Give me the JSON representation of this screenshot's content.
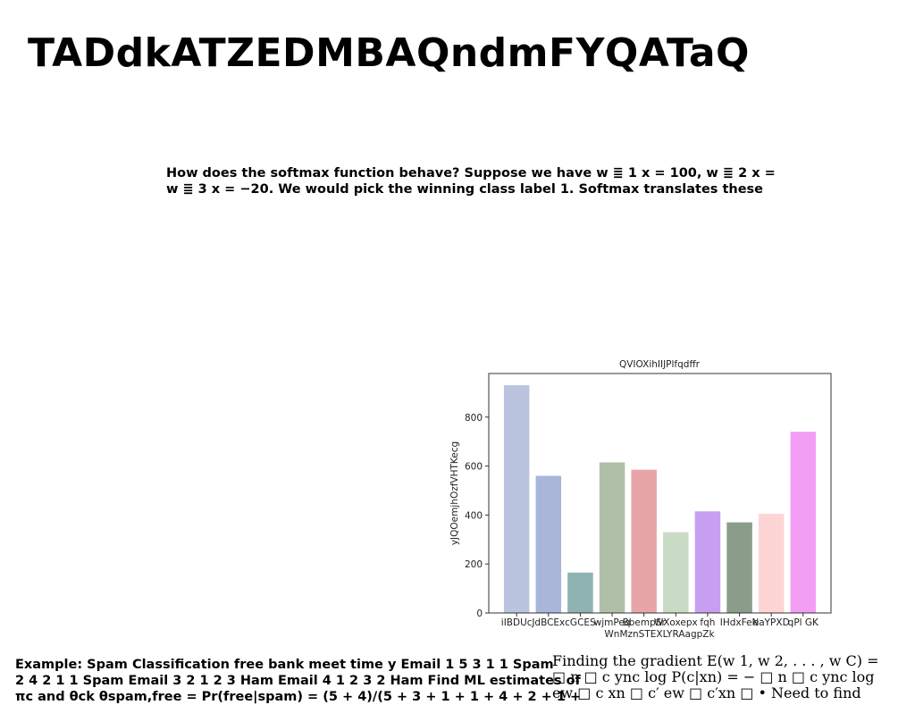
{
  "title": "TADdkATZEDMBAQndmFYQATaQ",
  "intro": {
    "lines": [
      "How does the softmax function behave? Suppose we have w ≣ 1 x = 100, w ≣ 2 x =",
      "w ≣ 3 x = −20. We would pick the winning class label 1. Softmax translates these"
    ]
  },
  "example": {
    "lines": [
      "Example: Spam Classification free bank meet time y Email 1 5 3 1 1 Spam",
      "2 4 2 1 1 Spam Email 3 2 1 2 3 Ham Email 4 1 2 3 2 Ham Find ML estimates of",
      "πc and θck θspam,free = Pr(free|spam) = (5 + 4)/(5 + 3 + 1 + 1 + 4 + 2 + 1 +"
    ]
  },
  "gradient": {
    "lines": [
      "Finding the gradient E(w 1, w 2, . . . , w C) =",
      "□ n □ c ync log P(c|xn) = − □ n □ c ync log",
      "ew □ c xn □ c′ ew □ c′xn □ • Need to find"
    ]
  },
  "chart_data": {
    "type": "bar",
    "title": "QVIOXihIIJPlfqdffr",
    "x_label": "WnMznSTEXLYRAagpZk",
    "y_label": "yJQOemjhOzfVHTKecg",
    "categories": [
      "iIBDUc",
      "JdBCEx",
      "cGCES",
      "wjmPeq",
      "BbempSr",
      "WXoxepx",
      "fqh",
      "IHdxFeN",
      "eaYPXD",
      "qPl GK"
    ],
    "values": [
      930,
      560,
      165,
      615,
      585,
      330,
      415,
      370,
      405,
      740
    ],
    "colors": [
      "#bac4de",
      "#a9b5d9",
      "#8fb2b3",
      "#b0c0a8",
      "#e8a5a8",
      "#cadbc5",
      "#c89ff0",
      "#8c9c8a",
      "#fdd5d5",
      "#f29ef5"
    ],
    "ylim": [
      0,
      978
    ],
    "yticks": [
      0,
      200,
      400,
      600,
      800
    ]
  }
}
